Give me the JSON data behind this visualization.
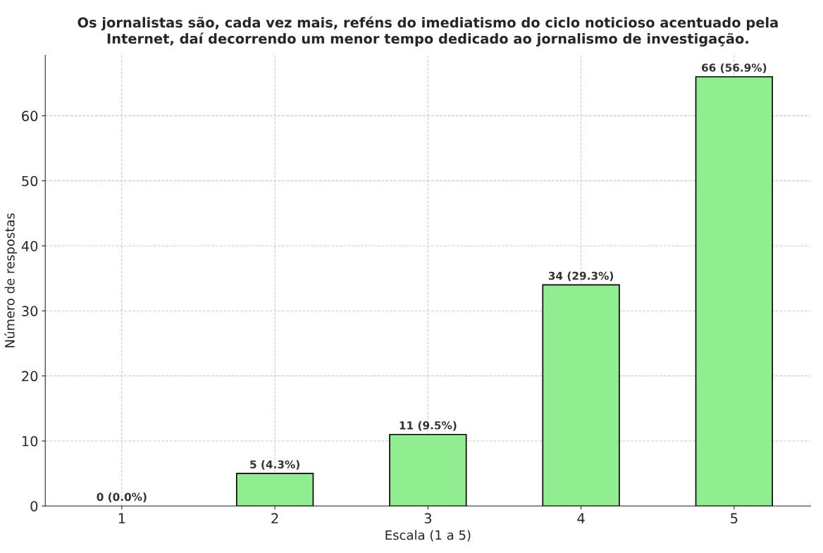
{
  "chart_data": {
    "type": "bar",
    "title": "Os jornalistas são, cada vez mais, reféns do imediatismo do ciclo noticioso acentuado pela\nInternet, daí decorrendo um menor tempo dedicado ao jornalismo de investigação.",
    "xlabel": "Escala (1 a 5)",
    "ylabel": "Número de respostas",
    "categories": [
      "1",
      "2",
      "3",
      "4",
      "5"
    ],
    "values": [
      0,
      5,
      11,
      34,
      66
    ],
    "value_labels": [
      "0 (0.0%)",
      "5 (4.3%)",
      "11 (9.5%)",
      "34 (29.3%)",
      "66 (56.9%)"
    ],
    "color": "#90ee90",
    "ylim": [
      0,
      69.3
    ],
    "yticks": [
      0,
      10,
      20,
      30,
      40,
      50,
      60
    ],
    "grid": true
  }
}
